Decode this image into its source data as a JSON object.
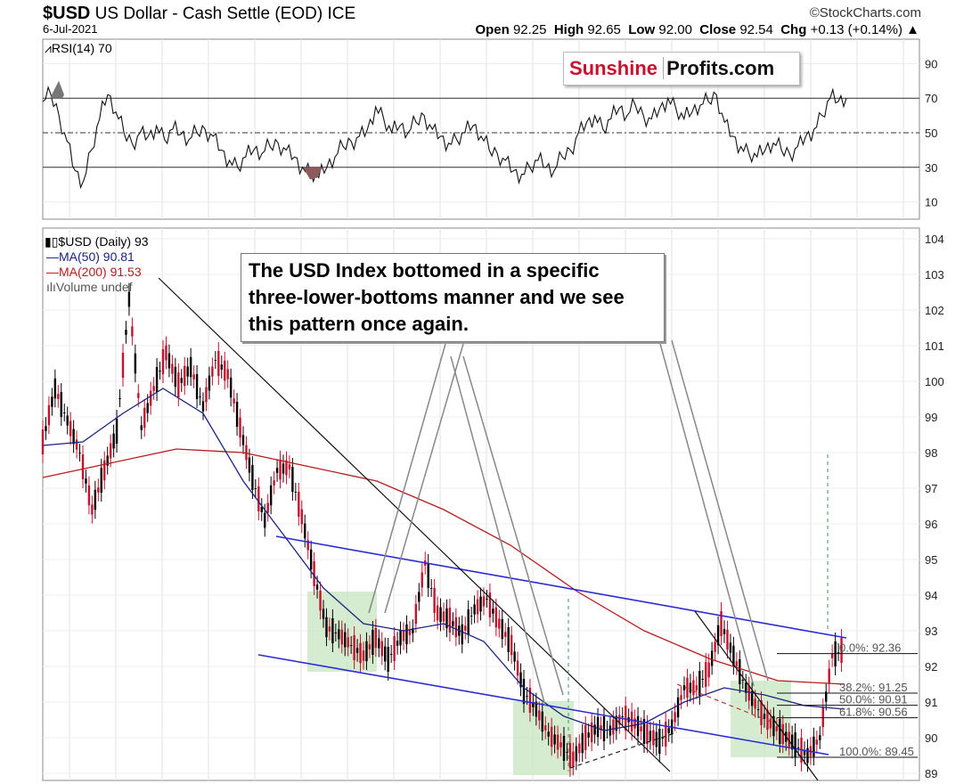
{
  "header": {
    "symbol": "$USD",
    "name": "US Dollar - Cash Settle (EOD)",
    "exchange": "ICE",
    "date": "6-Jul-2021",
    "brand": "©StockCharts.com",
    "open_label": "Open",
    "open": "92.25",
    "high_label": "High",
    "high": "92.65",
    "low_label": "Low",
    "low": "92.00",
    "close_label": "Close",
    "close": "92.54",
    "chg_label": "Chg",
    "chg": "+0.13 (+0.14%)"
  },
  "logo": {
    "part1": "Sunshine",
    "part2": "Profits.com"
  },
  "callout": {
    "text": "The USD Index bottomed in a specific three-lower-bottoms manner and we see this pattern once again."
  },
  "chart_data": [
    {
      "type": "line",
      "title": "RSI(14) 70",
      "ylim": [
        0,
        100
      ],
      "yticks": [
        10,
        30,
        50,
        70,
        90
      ],
      "reference_lines": [
        30,
        50,
        70
      ],
      "series": [
        {
          "name": "RSI(14)",
          "values": [
            68,
            72,
            60,
            45,
            28,
            22,
            40,
            58,
            72,
            62,
            50,
            44,
            50,
            48,
            54,
            46,
            52,
            49,
            46,
            50,
            52,
            48,
            40,
            34,
            30,
            36,
            40,
            38,
            42,
            44,
            40,
            36,
            30,
            27,
            24,
            30,
            36,
            42,
            45,
            48,
            52,
            65,
            58,
            50,
            54,
            50,
            56,
            60,
            52,
            48,
            44,
            46,
            50,
            54,
            48,
            40,
            38,
            34,
            28,
            26,
            30,
            34,
            30,
            28,
            36,
            40,
            50,
            56,
            60,
            52,
            58,
            64,
            60,
            66,
            60,
            58,
            64,
            70,
            64,
            58,
            62,
            66,
            68,
            72,
            56,
            48,
            42,
            38,
            36,
            40,
            44,
            40,
            38,
            42,
            48,
            52,
            60,
            70,
            68,
            70
          ]
        }
      ]
    },
    {
      "type": "line",
      "title": "$USD (Daily) 93",
      "ylim": [
        89,
        104
      ],
      "yticks": [
        89,
        90,
        91,
        92,
        93,
        94,
        95,
        96,
        97,
        98,
        99,
        100,
        101,
        102,
        103,
        104
      ],
      "series": [
        {
          "name": "$USD (Daily) 93",
          "values": [
            98.3,
            99.8,
            98.9,
            98.0,
            96.4,
            97.5,
            98.6,
            102.3,
            98.7,
            99.8,
            100.8,
            99.9,
            100.4,
            99.3,
            100.6,
            100.2,
            98.7,
            97.3,
            96.1,
            97.5,
            97.6,
            96.2,
            94.6,
            93.1,
            92.9,
            92.6,
            92.3,
            92.8,
            92.2,
            92.8,
            93.0,
            94.9,
            93.5,
            93.3,
            92.9,
            93.6,
            93.9,
            93.2,
            92.6,
            91.3,
            90.8,
            90.1,
            89.8,
            89.4,
            90.0,
            90.3,
            90.2,
            90.6,
            90.4,
            90.1,
            89.9,
            90.3,
            91.4,
            91.4,
            91.9,
            93.2,
            92.3,
            91.4,
            90.8,
            90.4,
            90.1,
            89.8,
            89.5,
            90.0,
            92.3,
            92.5
          ]
        },
        {
          "name": "MA(50) 90.81",
          "values": [
            98.2,
            98.3,
            99.1,
            99.8,
            99.1,
            97.2,
            95.7,
            94.2,
            93.2,
            93.0,
            93.2,
            92.7,
            91.4,
            90.6,
            90.2,
            90.4,
            91.0,
            91.4,
            91.2,
            90.9,
            90.8
          ]
        },
        {
          "name": "MA(200) 91.53",
          "values": [
            97.3,
            97.7,
            98.1,
            98.0,
            97.6,
            97.2,
            96.4,
            95.4,
            94.1,
            93.0,
            92.2,
            91.6,
            91.5
          ]
        }
      ],
      "annotations": [
        "0.0%: 92.36",
        "38.2%: 91.25",
        "50.0%: 90.91",
        "61.8%: 90.56",
        "100.0%: 89.45"
      ],
      "legend": [
        {
          "label": "$USD (Daily) 93",
          "color": "#000000"
        },
        {
          "label": "MA(50) 90.81",
          "color": "#1a237e"
        },
        {
          "label": "MA(200) 91.53",
          "color": "#b71c1c"
        },
        {
          "label": "Volume undef",
          "color": "#555555"
        }
      ]
    }
  ],
  "colors": {
    "price_up": "#000000",
    "price_down": "#c8102e",
    "ma50": "#1a237e",
    "ma200": "#b71c1c",
    "channel": "#2b2bd6",
    "box": "#c8e6c0"
  }
}
